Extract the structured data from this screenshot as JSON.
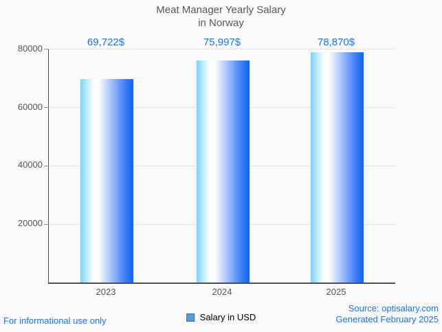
{
  "title": {
    "line1": "Meat Manager Yearly Salary",
    "line2": "in Norway"
  },
  "chart_data": {
    "type": "bar",
    "title": "Meat Manager Yearly Salary in Norway",
    "categories": [
      "2023",
      "2024",
      "2025"
    ],
    "series": [
      {
        "name": "Salary in USD",
        "values": [
          69722,
          75997,
          78870
        ]
      }
    ],
    "value_labels": [
      "69,722$",
      "75,997$",
      "78,870$"
    ],
    "xlabel": "",
    "ylabel": "",
    "ylim": [
      0,
      80000
    ],
    "yticks": [
      80000,
      60000,
      40000,
      20000
    ],
    "ytick_labels": [
      "80000",
      "60000",
      "40000",
      "20000"
    ],
    "grid": true,
    "legend_position": "bottom"
  },
  "legend": {
    "label": "Salary in USD",
    "swatch_color": "#5b9bd5",
    "swatch_border_color": "#3d6fa8"
  },
  "footer": {
    "left": "For informational use only",
    "source": "Source: optisalary.com",
    "generated": "Generated February 2025"
  },
  "colors": {
    "accent_blue": "#1a73e8",
    "bar_gradient_left": "#76d3fc",
    "bar_gradient_middle": "#ffffff",
    "bar_gradient_right": "#0f63f6",
    "title_gray": "#58585a",
    "axis_text_gray": "#555555",
    "axis_line": "#4d4d4d",
    "gridline": "#e4e4e4",
    "background": "#fafafa"
  }
}
